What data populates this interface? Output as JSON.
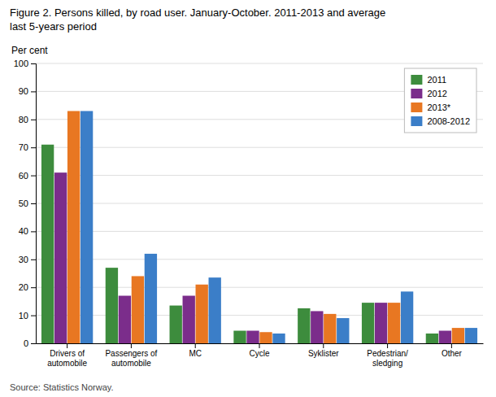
{
  "chart_data": {
    "type": "bar",
    "title": "Figure 2. Persons killed, by road user. January-October. 2011-2013 and average\nlast 5-years period",
    "ylabel": "Per cent",
    "source": "Source: Statistics Norway.",
    "categories": [
      "Drivers of\nautomobile",
      "Passengers of\nautomobile",
      "MC",
      "Cycle",
      "Syklister",
      "Pedestrian/\nsledging",
      "Other"
    ],
    "series": [
      {
        "name": "2011",
        "color": "#3d8c3d",
        "values": [
          71,
          27,
          13.5,
          4.5,
          12.5,
          14.5,
          3.5
        ]
      },
      {
        "name": "2012",
        "color": "#7b2d8b",
        "values": [
          61,
          17,
          17,
          4.5,
          11.5,
          14.5,
          4.5
        ]
      },
      {
        "name": "2013*",
        "color": "#e87722",
        "values": [
          83,
          24,
          21,
          4,
          10.5,
          14.5,
          5.5
        ]
      },
      {
        "name": "2008-2012",
        "color": "#3b7ec8",
        "values": [
          83,
          32,
          23.5,
          3.5,
          9,
          18.5,
          5.5
        ]
      }
    ],
    "ylim": [
      0,
      100
    ],
    "yticks": [
      0,
      10,
      20,
      30,
      40,
      50,
      60,
      70,
      80,
      90,
      100
    ],
    "grid": true,
    "legend": "upper right"
  }
}
